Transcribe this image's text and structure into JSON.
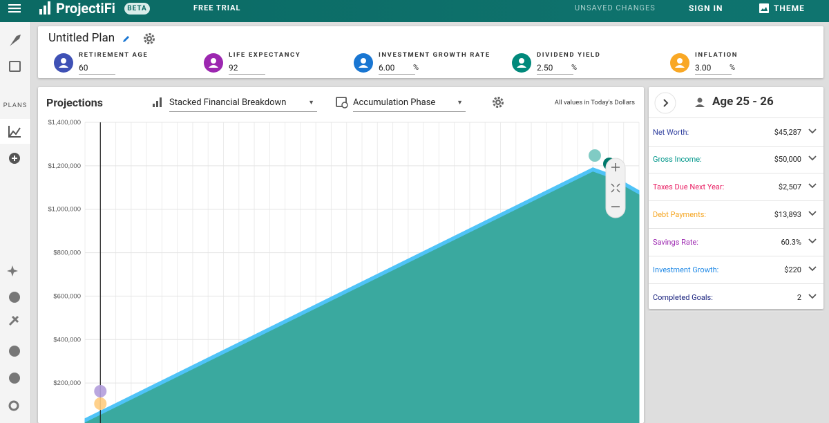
{
  "topbar": {
    "brand": "ProjectiFi",
    "badge": "BETA",
    "free_trial": "FREE TRIAL",
    "status": "UNSAVED CHANGES",
    "sign_in": "SIGN IN",
    "theme": "THEME"
  },
  "sidebar": {
    "section": "PLANS"
  },
  "plan": {
    "title": "Untitled Plan",
    "fields": [
      {
        "label": "RETIREMENT AGE",
        "value": "60",
        "color": "#3f51b5"
      },
      {
        "label": "LIFE EXPECTANCY",
        "value": "92",
        "color": "#9c27b0"
      },
      {
        "label": "INVESTMENT GROWTH RATE",
        "value": "6.00",
        "unit": "%",
        "color": "#1976d2"
      },
      {
        "label": "DIVIDEND YIELD",
        "value": "2.50",
        "unit": "%",
        "color": "#00897b"
      },
      {
        "label": "INFLATION",
        "value": "3.00",
        "unit": "%",
        "color": "#f9a825"
      }
    ]
  },
  "projections": {
    "title": "Projections",
    "view": "Stacked Financial Breakdown",
    "phase": "Accumulation Phase",
    "note": "All values in Today's Dollars",
    "chart": {
      "type": "area",
      "stacked": true,
      "grid": true,
      "ylim": [
        0,
        1400000
      ],
      "yticks": [
        {
          "value": 200000,
          "label": "$200,000"
        },
        {
          "value": 400000,
          "label": "$400,000"
        },
        {
          "value": 600000,
          "label": "$600,000"
        },
        {
          "value": 800000,
          "label": "$800,000"
        },
        {
          "value": 1000000,
          "label": "$1,000,000"
        },
        {
          "value": 1200000,
          "label": "$1,200,000"
        },
        {
          "value": 1400000,
          "label": "$1,400,000"
        }
      ],
      "series": [
        {
          "color": "#3aa99f",
          "values": [
            20000,
            55000,
            90000,
            125000,
            160000,
            195000,
            230000,
            265000,
            300000,
            335000,
            370000,
            405000,
            440000,
            475000,
            510000,
            545000,
            580000,
            615000,
            650000,
            685000,
            720000,
            755000,
            790000,
            825000,
            860000,
            895000,
            930000,
            965000,
            1000000,
            1035000,
            1070000,
            1105000,
            1140000,
            1175000,
            1150000,
            1110000,
            1070000
          ]
        },
        {
          "color": "#4fc3f7",
          "values": [
            16000,
            16000,
            16000,
            16000,
            16000,
            16000,
            16000,
            16000,
            16000,
            16000,
            16000,
            16000,
            16000,
            16000,
            16000,
            16000,
            16000,
            16000,
            16000,
            16000,
            16000,
            16000,
            16000,
            16000,
            16000,
            16000,
            16000,
            16000,
            16000,
            16000,
            16000,
            16000,
            16000,
            16000,
            16000,
            16000,
            16000
          ]
        }
      ]
    }
  },
  "summary": {
    "title": "Age 25 - 26",
    "rows": [
      {
        "label": "Net Worth:",
        "value": "$45,287",
        "color": "#303f9f"
      },
      {
        "label": "Gross Income:",
        "value": "$50,000",
        "color": "#00968a"
      },
      {
        "label": "Taxes Due Next Year:",
        "value": "$2,507",
        "color": "#e91e63"
      },
      {
        "label": "Debt Payments:",
        "value": "$13,893",
        "color": "#f5a623"
      },
      {
        "label": "Savings Rate:",
        "value": "60.3%",
        "color": "#9c27b0"
      },
      {
        "label": "Investment Growth:",
        "value": "$220",
        "color": "#1e88e5"
      },
      {
        "label": "Completed Goals:",
        "value": "2",
        "color": "#1a237e"
      }
    ]
  }
}
